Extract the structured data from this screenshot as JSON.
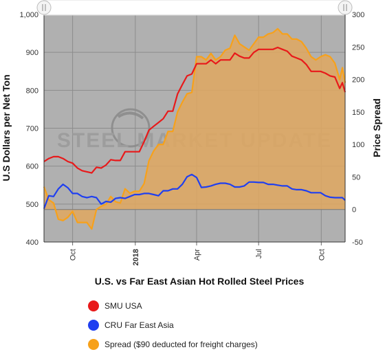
{
  "chart_data": {
    "type": "line",
    "title": "U.S. vs Far East Asian Hot Rolled Steel Prices",
    "ylabel": "U.S Dollars per Net Ton",
    "y2label": "Price Spread",
    "ylim": [
      400,
      1000
    ],
    "y2lim": [
      -50,
      300
    ],
    "xlim": [
      "2017-08-20",
      "2018-11-05"
    ],
    "yticks": [
      "400",
      "500",
      "600",
      "700",
      "800",
      "900",
      "1,000"
    ],
    "y2ticks": [
      "-50",
      "0",
      "50",
      "100",
      "150",
      "200",
      "250",
      "300"
    ],
    "xticks": [
      {
        "label": "Oct",
        "date": "2017-10-01",
        "bold": false
      },
      {
        "label": "2018",
        "date": "2018-01-01",
        "bold": true
      },
      {
        "label": "Apr",
        "date": "2018-04-01",
        "bold": false
      },
      {
        "label": "Jul",
        "date": "2018-07-01",
        "bold": false
      },
      {
        "label": "Oct",
        "date": "2018-10-01",
        "bold": false
      }
    ],
    "grid": true,
    "legend_position": "bottom-left",
    "watermark": "STEEL MARKET UPDATE",
    "series": [
      {
        "name": "SMU USA",
        "color": "#e8191a",
        "axis": "left",
        "points": [
          [
            "2017-08-20",
            612
          ],
          [
            "2017-08-27",
            620
          ],
          [
            "2017-09-03",
            625
          ],
          [
            "2017-09-10",
            625
          ],
          [
            "2017-09-17",
            620
          ],
          [
            "2017-09-24",
            612
          ],
          [
            "2017-10-01",
            608
          ],
          [
            "2017-10-08",
            595
          ],
          [
            "2017-10-15",
            588
          ],
          [
            "2017-10-22",
            585
          ],
          [
            "2017-10-29",
            582
          ],
          [
            "2017-11-05",
            597
          ],
          [
            "2017-11-12",
            595
          ],
          [
            "2017-11-19",
            603
          ],
          [
            "2017-11-26",
            617
          ],
          [
            "2017-12-03",
            615
          ],
          [
            "2017-12-10",
            615
          ],
          [
            "2017-12-17",
            638
          ],
          [
            "2017-12-24",
            638
          ],
          [
            "2017-12-31",
            638
          ],
          [
            "2018-01-07",
            638
          ],
          [
            "2018-01-14",
            665
          ],
          [
            "2018-01-21",
            695
          ],
          [
            "2018-01-28",
            705
          ],
          [
            "2018-02-04",
            715
          ],
          [
            "2018-02-11",
            725
          ],
          [
            "2018-02-18",
            745
          ],
          [
            "2018-02-25",
            745
          ],
          [
            "2018-03-04",
            790
          ],
          [
            "2018-03-11",
            815
          ],
          [
            "2018-03-18",
            838
          ],
          [
            "2018-03-25",
            843
          ],
          [
            "2018-04-01",
            870
          ],
          [
            "2018-04-08",
            870
          ],
          [
            "2018-04-15",
            870
          ],
          [
            "2018-04-22",
            880
          ],
          [
            "2018-04-29",
            870
          ],
          [
            "2018-05-06",
            880
          ],
          [
            "2018-05-13",
            880
          ],
          [
            "2018-05-20",
            880
          ],
          [
            "2018-05-27",
            898
          ],
          [
            "2018-06-03",
            890
          ],
          [
            "2018-06-10",
            885
          ],
          [
            "2018-06-17",
            885
          ],
          [
            "2018-06-24",
            900
          ],
          [
            "2018-07-01",
            908
          ],
          [
            "2018-07-08",
            908
          ],
          [
            "2018-07-15",
            908
          ],
          [
            "2018-07-22",
            908
          ],
          [
            "2018-07-29",
            913
          ],
          [
            "2018-08-05",
            908
          ],
          [
            "2018-08-12",
            903
          ],
          [
            "2018-08-19",
            890
          ],
          [
            "2018-08-26",
            885
          ],
          [
            "2018-09-02",
            880
          ],
          [
            "2018-09-09",
            868
          ],
          [
            "2018-09-16",
            850
          ],
          [
            "2018-09-23",
            850
          ],
          [
            "2018-09-30",
            850
          ],
          [
            "2018-10-07",
            845
          ],
          [
            "2018-10-14",
            838
          ],
          [
            "2018-10-21",
            835
          ],
          [
            "2018-10-28",
            805
          ],
          [
            "2018-11-01",
            820
          ],
          [
            "2018-11-05",
            795
          ]
        ]
      },
      {
        "name": "CRU Far East Asia",
        "color": "#1f3ff0",
        "axis": "left",
        "points": [
          [
            "2017-08-20",
            488
          ],
          [
            "2017-08-27",
            522
          ],
          [
            "2017-09-03",
            520
          ],
          [
            "2017-09-10",
            540
          ],
          [
            "2017-09-17",
            552
          ],
          [
            "2017-09-24",
            543
          ],
          [
            "2017-10-01",
            528
          ],
          [
            "2017-10-08",
            528
          ],
          [
            "2017-10-15",
            520
          ],
          [
            "2017-10-22",
            517
          ],
          [
            "2017-10-29",
            520
          ],
          [
            "2017-11-05",
            517
          ],
          [
            "2017-11-12",
            500
          ],
          [
            "2017-11-19",
            507
          ],
          [
            "2017-11-26",
            505
          ],
          [
            "2017-12-03",
            515
          ],
          [
            "2017-12-10",
            517
          ],
          [
            "2017-12-17",
            515
          ],
          [
            "2017-12-24",
            520
          ],
          [
            "2017-12-31",
            525
          ],
          [
            "2018-01-07",
            525
          ],
          [
            "2018-01-14",
            528
          ],
          [
            "2018-01-21",
            528
          ],
          [
            "2018-01-28",
            525
          ],
          [
            "2018-02-04",
            522
          ],
          [
            "2018-02-11",
            535
          ],
          [
            "2018-02-18",
            535
          ],
          [
            "2018-02-25",
            540
          ],
          [
            "2018-03-04",
            540
          ],
          [
            "2018-03-11",
            552
          ],
          [
            "2018-03-18",
            572
          ],
          [
            "2018-03-25",
            578
          ],
          [
            "2018-04-01",
            570
          ],
          [
            "2018-04-08",
            544
          ],
          [
            "2018-04-15",
            545
          ],
          [
            "2018-04-22",
            548
          ],
          [
            "2018-04-29",
            552
          ],
          [
            "2018-05-06",
            555
          ],
          [
            "2018-05-13",
            555
          ],
          [
            "2018-05-20",
            552
          ],
          [
            "2018-05-27",
            545
          ],
          [
            "2018-06-03",
            545
          ],
          [
            "2018-06-10",
            548
          ],
          [
            "2018-06-17",
            558
          ],
          [
            "2018-06-24",
            558
          ],
          [
            "2018-07-01",
            557
          ],
          [
            "2018-07-08",
            557
          ],
          [
            "2018-07-15",
            552
          ],
          [
            "2018-07-22",
            552
          ],
          [
            "2018-07-29",
            550
          ],
          [
            "2018-08-05",
            548
          ],
          [
            "2018-08-12",
            548
          ],
          [
            "2018-08-19",
            540
          ],
          [
            "2018-08-26",
            538
          ],
          [
            "2018-09-02",
            538
          ],
          [
            "2018-09-09",
            535
          ],
          [
            "2018-09-16",
            530
          ],
          [
            "2018-09-23",
            530
          ],
          [
            "2018-09-30",
            530
          ],
          [
            "2018-10-07",
            522
          ],
          [
            "2018-10-14",
            518
          ],
          [
            "2018-10-21",
            517
          ],
          [
            "2018-10-28",
            517
          ],
          [
            "2018-11-01",
            517
          ],
          [
            "2018-11-05",
            510
          ]
        ]
      },
      {
        "name": "Spread ($90 deducted for freight charges)",
        "color": "#f7a11a",
        "fill": "#e0a860",
        "axis": "right",
        "points": [
          [
            "2017-08-20",
            35
          ],
          [
            "2017-08-27",
            15
          ],
          [
            "2017-09-03",
            10
          ],
          [
            "2017-09-10",
            -15
          ],
          [
            "2017-09-17",
            -17
          ],
          [
            "2017-09-24",
            -12
          ],
          [
            "2017-10-01",
            -3
          ],
          [
            "2017-10-08",
            -20
          ],
          [
            "2017-10-15",
            -20
          ],
          [
            "2017-10-22",
            -20
          ],
          [
            "2017-10-29",
            -30
          ],
          [
            "2017-11-05",
            0
          ],
          [
            "2017-11-12",
            5
          ],
          [
            "2017-11-19",
            8
          ],
          [
            "2017-11-26",
            20
          ],
          [
            "2017-12-03",
            12
          ],
          [
            "2017-12-10",
            10
          ],
          [
            "2017-12-17",
            32
          ],
          [
            "2017-12-24",
            25
          ],
          [
            "2017-12-31",
            28
          ],
          [
            "2018-01-07",
            28
          ],
          [
            "2018-01-14",
            40
          ],
          [
            "2018-01-21",
            75
          ],
          [
            "2018-01-28",
            90
          ],
          [
            "2018-02-04",
            100
          ],
          [
            "2018-02-11",
            100
          ],
          [
            "2018-02-18",
            120
          ],
          [
            "2018-02-25",
            120
          ],
          [
            "2018-03-04",
            150
          ],
          [
            "2018-03-11",
            165
          ],
          [
            "2018-03-18",
            178
          ],
          [
            "2018-03-25",
            180
          ],
          [
            "2018-04-01",
            235
          ],
          [
            "2018-04-08",
            235
          ],
          [
            "2018-04-15",
            230
          ],
          [
            "2018-04-22",
            240
          ],
          [
            "2018-04-29",
            230
          ],
          [
            "2018-05-06",
            235
          ],
          [
            "2018-05-13",
            245
          ],
          [
            "2018-05-20",
            248
          ],
          [
            "2018-05-27",
            268
          ],
          [
            "2018-06-03",
            255
          ],
          [
            "2018-06-10",
            250
          ],
          [
            "2018-06-17",
            245
          ],
          [
            "2018-06-24",
            255
          ],
          [
            "2018-07-01",
            265
          ],
          [
            "2018-07-08",
            265
          ],
          [
            "2018-07-15",
            270
          ],
          [
            "2018-07-22",
            272
          ],
          [
            "2018-07-29",
            278
          ],
          [
            "2018-08-05",
            270
          ],
          [
            "2018-08-12",
            270
          ],
          [
            "2018-08-19",
            262
          ],
          [
            "2018-08-26",
            262
          ],
          [
            "2018-09-02",
            258
          ],
          [
            "2018-09-09",
            248
          ],
          [
            "2018-09-16",
            235
          ],
          [
            "2018-09-23",
            230
          ],
          [
            "2018-09-30",
            235
          ],
          [
            "2018-10-07",
            238
          ],
          [
            "2018-10-14",
            235
          ],
          [
            "2018-10-21",
            225
          ],
          [
            "2018-10-28",
            200
          ],
          [
            "2018-11-01",
            218
          ],
          [
            "2018-11-05",
            195
          ]
        ]
      }
    ]
  }
}
